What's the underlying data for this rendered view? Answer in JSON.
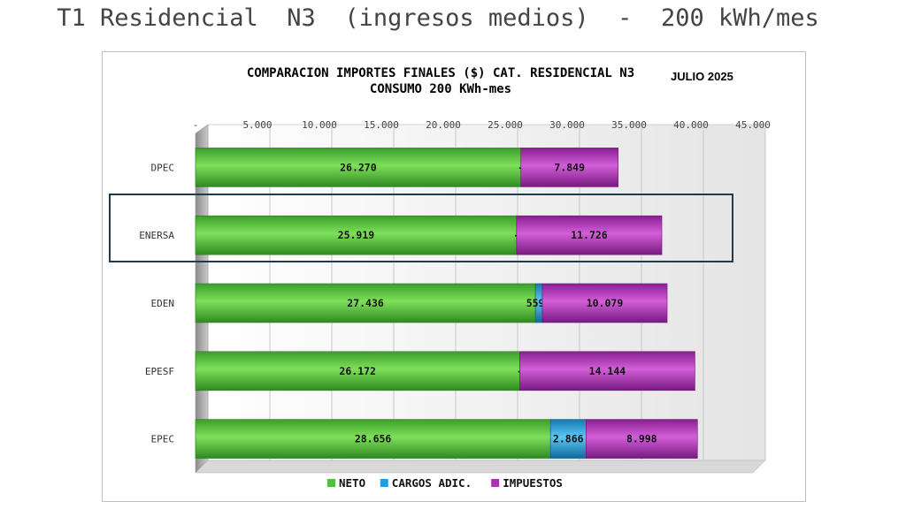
{
  "slide": {
    "title": "T1 Residencial  N3  (ingresos medios)  -  200 kWh/mes"
  },
  "chart_data": {
    "type": "bar",
    "orientation": "horizontal",
    "stacked": true,
    "title": "COMPARACION IMPORTES FINALES ($) CAT. RESIDENCIAL N3",
    "title_badge": "JULIO 2025",
    "subtitle": "CONSUMO 200 KWh-mes",
    "xlim": [
      0,
      45000
    ],
    "x_ticks": [
      0,
      5000,
      10000,
      15000,
      20000,
      25000,
      30000,
      35000,
      40000,
      45000
    ],
    "x_tick_labels": [
      "-",
      "5.000",
      "10.000",
      "15.000",
      "20.000",
      "25.000",
      "30.000",
      "35.000",
      "40.000",
      "45.000"
    ],
    "categories": [
      "DPEC",
      "ENERSA",
      "EDEN",
      "EPESF",
      "EPEC"
    ],
    "highlighted_category": "ENERSA",
    "series": [
      {
        "name": "NETO",
        "color": "#4cc23a",
        "values": [
          26270,
          25919,
          27436,
          26172,
          28656
        ],
        "labels": [
          "26.270",
          "25.919",
          "27.436",
          "26.172",
          "28.656"
        ]
      },
      {
        "name": "CARGOS ADIC.",
        "color": "#1ea0e0",
        "values": [
          0,
          0,
          559,
          0,
          2866
        ],
        "labels": [
          "-",
          "-",
          "559",
          "-",
          "2.866"
        ]
      },
      {
        "name": "IMPUESTOS",
        "color": "#b02cb8",
        "values": [
          7849,
          11726,
          10079,
          14144,
          8998
        ],
        "labels": [
          "7.849",
          "11.726",
          "10.079",
          "14.144",
          "8.998"
        ]
      }
    ],
    "grid": "vertical",
    "legend_position": "bottom"
  },
  "colors": {
    "neto": "#4cc23a",
    "cargos": "#1ea0e0",
    "impuestos": "#b02cb8",
    "highlight_border": "#1f3b4d"
  }
}
